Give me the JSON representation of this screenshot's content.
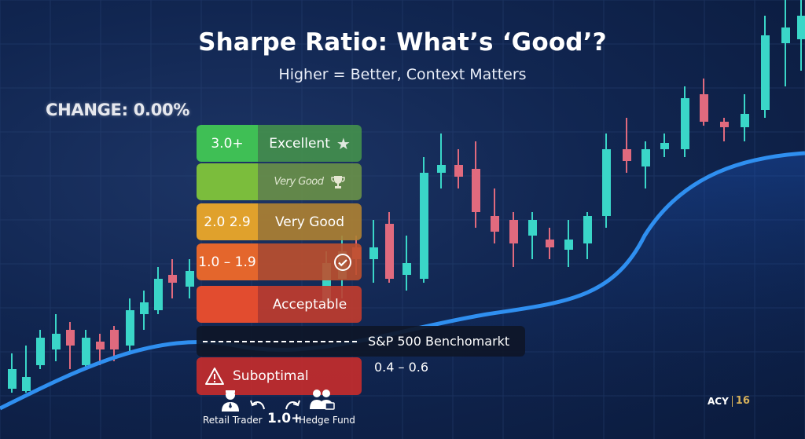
{
  "title": "Sharpe Ratio: What’s ‘Good’?",
  "subtitle": "Higher = Better, Context Matters",
  "change_label": "CHANGE: 0.00%",
  "tiers": [
    {
      "range": "3.0+",
      "label": "Excellent",
      "icon": "star-icon"
    },
    {
      "range": "",
      "label": "Very Good",
      "icon": "trophy-icon"
    },
    {
      "range": "2.0 2.9",
      "label": "Very Good",
      "icon": ""
    },
    {
      "range": "1.0 – 1.9",
      "label": "",
      "icon": "check-circle-icon"
    },
    {
      "range": "",
      "label": "Acceptable",
      "icon": ""
    },
    {
      "range": "",
      "label": "Suboptimal",
      "icon": "warning-icon"
    }
  ],
  "benchmark": {
    "label": "S&P 500 Benchomarkt",
    "range": "0.4 – 0.6"
  },
  "comparison": {
    "left": "Retail Trader",
    "value": "1.0+",
    "right": "Hedge Fund"
  },
  "brand": {
    "name": "ACY",
    "number": "16"
  },
  "colors": {
    "bull": "#3ad6c8",
    "bear": "#e06a7e",
    "curve": "#2f8ff0"
  }
}
